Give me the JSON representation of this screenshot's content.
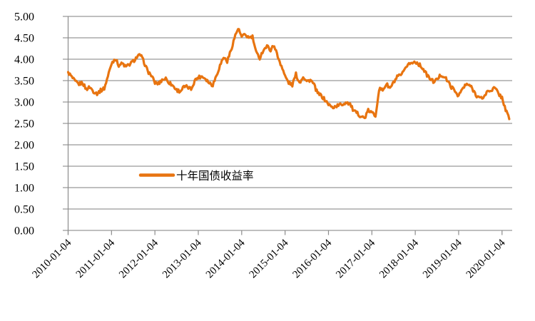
{
  "chart_data": {
    "type": "line",
    "title": "",
    "legend": {
      "label": "十年国债收益率",
      "position": "inside-left-middle",
      "marker": "line"
    },
    "series": [
      {
        "name": "十年国债收益率",
        "color": "#E87410",
        "start": "2010-01",
        "interval": "monthly",
        "values": [
          3.7,
          3.58,
          3.47,
          3.42,
          3.45,
          3.3,
          3.35,
          3.25,
          3.2,
          3.27,
          3.32,
          3.6,
          3.9,
          4.02,
          3.86,
          3.9,
          3.82,
          3.88,
          3.95,
          4.05,
          4.1,
          3.93,
          3.72,
          3.62,
          3.45,
          3.43,
          3.52,
          3.55,
          3.45,
          3.38,
          3.28,
          3.25,
          3.35,
          3.35,
          3.3,
          3.5,
          3.58,
          3.6,
          3.55,
          3.45,
          3.4,
          3.62,
          3.85,
          4.05,
          3.95,
          4.2,
          4.5,
          4.72,
          4.52,
          4.57,
          4.5,
          4.52,
          4.15,
          4.03,
          4.22,
          4.3,
          4.22,
          4.33,
          4.05,
          3.85,
          3.6,
          3.45,
          3.4,
          3.65,
          3.45,
          3.6,
          3.48,
          3.52,
          3.4,
          3.2,
          3.15,
          3.05,
          2.95,
          2.87,
          2.9,
          2.93,
          2.95,
          3.0,
          2.95,
          2.78,
          2.73,
          2.67,
          2.62,
          2.8,
          2.75,
          2.68,
          3.3,
          3.28,
          3.42,
          3.32,
          3.45,
          3.58,
          3.62,
          3.72,
          3.9,
          3.9,
          3.95,
          3.88,
          3.8,
          3.66,
          3.55,
          3.48,
          3.52,
          3.63,
          3.6,
          3.48,
          3.35,
          3.25,
          3.15,
          3.3,
          3.4,
          3.4,
          3.28,
          3.15,
          3.08,
          3.12,
          3.25,
          3.28,
          3.33,
          3.2,
          3.1,
          2.82,
          2.6
        ]
      }
    ],
    "x_ticks": [
      "2010-01-04",
      "2011-01-04",
      "2012-01-04",
      "2013-01-04",
      "2014-01-04",
      "2015-01-04",
      "2016-01-04",
      "2017-01-04",
      "2018-01-04",
      "2019-01-04",
      "2020-01-04"
    ],
    "y_ticks": [
      "5.00",
      "4.50",
      "4.00",
      "3.50",
      "3.00",
      "2.50",
      "2.00",
      "1.50",
      "1.00",
      "0.50",
      "0.00"
    ],
    "ylim": [
      0.0,
      5.0
    ],
    "y_step": 0.5,
    "grid": true,
    "axes": {
      "x_label": "",
      "y_label": ""
    },
    "colors": {
      "line": "#E87410",
      "gridline": "#999999",
      "axis": "#8C8C8C",
      "text": "#000000",
      "background": "#FFFFFF"
    }
  }
}
